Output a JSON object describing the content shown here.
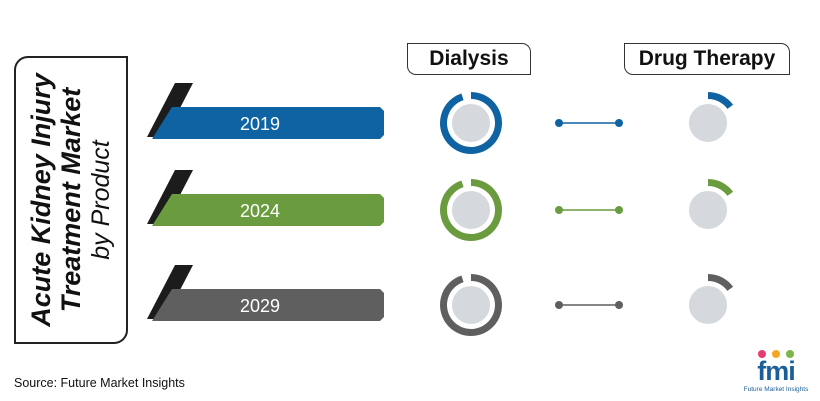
{
  "title": {
    "line1": "Acute Kidney Injury",
    "line2": "Treatment Market",
    "line3": "by Product"
  },
  "columns": {
    "dialysis": "Dialysis",
    "drug_therapy": "Drug Therapy"
  },
  "source": "Source: Future Market Insights",
  "logo": {
    "word": "fmi",
    "tagline": "Future Market Insights",
    "dot_colors": [
      "#e63b6f",
      "#f5a623",
      "#7ab648"
    ]
  },
  "chart_data": {
    "type": "donut",
    "categories": [
      "2019",
      "2024",
      "2029"
    ],
    "series": [
      {
        "name": "Dialysis",
        "values": [
          0.95,
          0.95,
          0.95
        ]
      },
      {
        "name": "Drug Therapy",
        "values": [
          0.15,
          0.15,
          0.15
        ]
      }
    ],
    "colors": [
      "#0f63a3",
      "#6a9c3f",
      "#5f5f5f"
    ]
  }
}
